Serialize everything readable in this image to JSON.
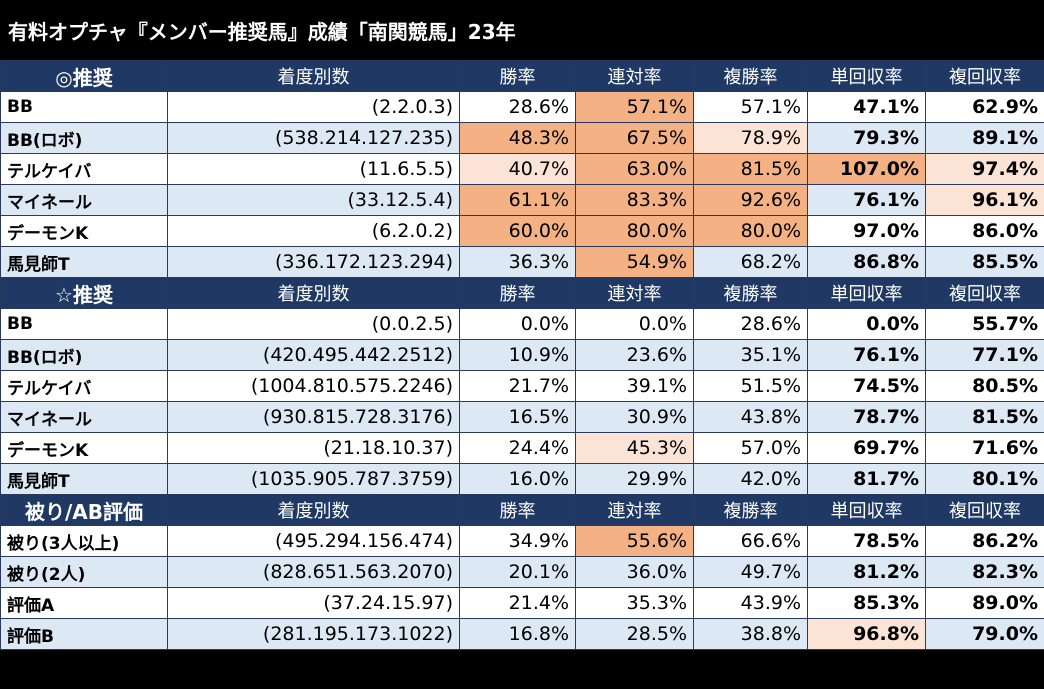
{
  "title": "有料オプチャ『メンバー推奨馬』成績「南関競馬」23年",
  "columns": [
    "着度別数",
    "勝率",
    "連対率",
    "複勝率",
    "単回収率",
    "複回収率"
  ],
  "colors": {
    "header_bg": "#1f3864",
    "alt_row": "#dde8f5",
    "highlight_strong": "#f4b183",
    "highlight_light": "#fbe4d6"
  },
  "sections": [
    {
      "label": "◎推奨",
      "rows": [
        {
          "name": "BB",
          "counts": "(2.2.0.3)",
          "win": "28.6%",
          "rentai": "57.1%",
          "fukusho": "57.1%",
          "tan": "47.1%",
          "fuku": "62.9%"
        },
        {
          "name": "BB(ロボ)",
          "counts": "(538.214.127.235)",
          "win": "48.3%",
          "rentai": "67.5%",
          "fukusho": "78.9%",
          "tan": "79.3%",
          "fuku": "89.1%"
        },
        {
          "name": "テルケイバ",
          "counts": "(11.6.5.5)",
          "win": "40.7%",
          "rentai": "63.0%",
          "fukusho": "81.5%",
          "tan": "107.0%",
          "fuku": "97.4%"
        },
        {
          "name": "マイネール",
          "counts": "(33.12.5.4)",
          "win": "61.1%",
          "rentai": "83.3%",
          "fukusho": "92.6%",
          "tan": "76.1%",
          "fuku": "96.1%"
        },
        {
          "name": "デーモンK",
          "counts": "(6.2.0.2)",
          "win": "60.0%",
          "rentai": "80.0%",
          "fukusho": "80.0%",
          "tan": "97.0%",
          "fuku": "86.0%"
        },
        {
          "name": "馬見師T",
          "counts": "(336.172.123.294)",
          "win": "36.3%",
          "rentai": "54.9%",
          "fukusho": "68.2%",
          "tan": "86.8%",
          "fuku": "85.5%"
        }
      ]
    },
    {
      "label": "☆推奨",
      "rows": [
        {
          "name": "BB",
          "counts": "(0.0.2.5)",
          "win": "0.0%",
          "rentai": "0.0%",
          "fukusho": "28.6%",
          "tan": "0.0%",
          "fuku": "55.7%"
        },
        {
          "name": "BB(ロボ)",
          "counts": "(420.495.442.2512)",
          "win": "10.9%",
          "rentai": "23.6%",
          "fukusho": "35.1%",
          "tan": "76.1%",
          "fuku": "77.1%"
        },
        {
          "name": "テルケイバ",
          "counts": "(1004.810.575.2246)",
          "win": "21.7%",
          "rentai": "39.1%",
          "fukusho": "51.5%",
          "tan": "74.5%",
          "fuku": "80.5%"
        },
        {
          "name": "マイネール",
          "counts": "(930.815.728.3176)",
          "win": "16.5%",
          "rentai": "30.9%",
          "fukusho": "43.8%",
          "tan": "78.7%",
          "fuku": "81.5%"
        },
        {
          "name": "デーモンK",
          "counts": "(21.18.10.37)",
          "win": "24.4%",
          "rentai": "45.3%",
          "fukusho": "57.0%",
          "tan": "69.7%",
          "fuku": "71.6%"
        },
        {
          "name": "馬見師T",
          "counts": "(1035.905.787.3759)",
          "win": "16.0%",
          "rentai": "29.9%",
          "fukusho": "42.0%",
          "tan": "81.7%",
          "fuku": "80.1%"
        }
      ]
    },
    {
      "label": "被り/AB評価",
      "rows": [
        {
          "name": "被り(3人以上)",
          "counts": "(495.294.156.474)",
          "win": "34.9%",
          "rentai": "55.6%",
          "fukusho": "66.6%",
          "tan": "78.5%",
          "fuku": "86.2%"
        },
        {
          "name": "被り(2人)",
          "counts": "(828.651.563.2070)",
          "win": "20.1%",
          "rentai": "36.0%",
          "fukusho": "49.7%",
          "tan": "81.2%",
          "fuku": "82.3%"
        },
        {
          "name": "評価A",
          "counts": "(37.24.15.97)",
          "win": "21.4%",
          "rentai": "35.3%",
          "fukusho": "43.9%",
          "tan": "85.3%",
          "fuku": "89.0%"
        },
        {
          "name": "評価B",
          "counts": "(281.195.173.1022)",
          "win": "16.8%",
          "rentai": "28.5%",
          "fukusho": "38.8%",
          "tan": "96.8%",
          "fuku": "79.0%"
        }
      ]
    }
  ]
}
